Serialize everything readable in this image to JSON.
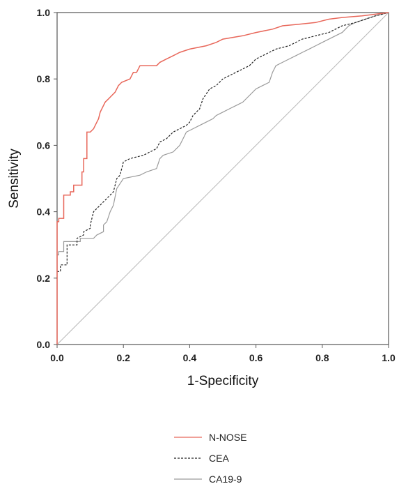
{
  "chart_data": {
    "type": "line",
    "xlabel": "1-Specificity",
    "ylabel": "Sensitivity",
    "xlim": [
      0,
      1
    ],
    "ylim": [
      0,
      1
    ],
    "x_ticks": [
      "0.0",
      "0.2",
      "0.4",
      "0.6",
      "0.8",
      "1.0"
    ],
    "y_ticks": [
      "0.0",
      "0.2",
      "0.4",
      "0.6",
      "0.8",
      "1.0"
    ],
    "legend_position": "bottom-center",
    "reference_line": {
      "from": [
        0,
        0
      ],
      "to": [
        1,
        1
      ],
      "color": "#b8b8b8"
    },
    "series": [
      {
        "name": "N-NOSE",
        "color": "#e8675a",
        "dash": "solid",
        "points": [
          [
            0,
            0
          ],
          [
            0,
            0.37
          ],
          [
            0.005,
            0.37
          ],
          [
            0.005,
            0.38
          ],
          [
            0.02,
            0.38
          ],
          [
            0.02,
            0.45
          ],
          [
            0.04,
            0.45
          ],
          [
            0.04,
            0.46
          ],
          [
            0.05,
            0.46
          ],
          [
            0.05,
            0.48
          ],
          [
            0.075,
            0.48
          ],
          [
            0.075,
            0.52
          ],
          [
            0.08,
            0.52
          ],
          [
            0.08,
            0.56
          ],
          [
            0.09,
            0.56
          ],
          [
            0.09,
            0.64
          ],
          [
            0.1,
            0.64
          ],
          [
            0.11,
            0.65
          ],
          [
            0.12,
            0.67
          ],
          [
            0.125,
            0.68
          ],
          [
            0.13,
            0.7
          ],
          [
            0.14,
            0.72
          ],
          [
            0.145,
            0.73
          ],
          [
            0.155,
            0.74
          ],
          [
            0.165,
            0.75
          ],
          [
            0.175,
            0.76
          ],
          [
            0.185,
            0.78
          ],
          [
            0.195,
            0.79
          ],
          [
            0.22,
            0.8
          ],
          [
            0.23,
            0.82
          ],
          [
            0.24,
            0.82
          ],
          [
            0.25,
            0.84
          ],
          [
            0.3,
            0.84
          ],
          [
            0.31,
            0.85
          ],
          [
            0.33,
            0.86
          ],
          [
            0.35,
            0.87
          ],
          [
            0.37,
            0.88
          ],
          [
            0.4,
            0.89
          ],
          [
            0.45,
            0.9
          ],
          [
            0.48,
            0.91
          ],
          [
            0.5,
            0.92
          ],
          [
            0.56,
            0.93
          ],
          [
            0.6,
            0.94
          ],
          [
            0.65,
            0.95
          ],
          [
            0.68,
            0.96
          ],
          [
            0.73,
            0.965
          ],
          [
            0.78,
            0.97
          ],
          [
            0.82,
            0.98
          ],
          [
            0.86,
            0.985
          ],
          [
            0.92,
            0.99
          ],
          [
            0.96,
            0.995
          ],
          [
            1,
            1
          ]
        ]
      },
      {
        "name": "CEA",
        "color": "#222222",
        "dash": "dashed",
        "points": [
          [
            0,
            0.22
          ],
          [
            0.01,
            0.22
          ],
          [
            0.01,
            0.24
          ],
          [
            0.03,
            0.24
          ],
          [
            0.03,
            0.3
          ],
          [
            0.06,
            0.3
          ],
          [
            0.06,
            0.32
          ],
          [
            0.08,
            0.33
          ],
          [
            0.08,
            0.34
          ],
          [
            0.1,
            0.35
          ],
          [
            0.1,
            0.36
          ],
          [
            0.11,
            0.4
          ],
          [
            0.13,
            0.42
          ],
          [
            0.15,
            0.44
          ],
          [
            0.17,
            0.46
          ],
          [
            0.18,
            0.5
          ],
          [
            0.19,
            0.51
          ],
          [
            0.2,
            0.55
          ],
          [
            0.22,
            0.56
          ],
          [
            0.26,
            0.57
          ],
          [
            0.28,
            0.58
          ],
          [
            0.3,
            0.59
          ],
          [
            0.31,
            0.61
          ],
          [
            0.33,
            0.62
          ],
          [
            0.35,
            0.64
          ],
          [
            0.37,
            0.65
          ],
          [
            0.39,
            0.66
          ],
          [
            0.4,
            0.67
          ],
          [
            0.41,
            0.69
          ],
          [
            0.43,
            0.71
          ],
          [
            0.44,
            0.74
          ],
          [
            0.46,
            0.77
          ],
          [
            0.48,
            0.78
          ],
          [
            0.5,
            0.8
          ],
          [
            0.52,
            0.81
          ],
          [
            0.54,
            0.82
          ],
          [
            0.56,
            0.83
          ],
          [
            0.58,
            0.84
          ],
          [
            0.6,
            0.86
          ],
          [
            0.62,
            0.87
          ],
          [
            0.66,
            0.89
          ],
          [
            0.7,
            0.9
          ],
          [
            0.74,
            0.92
          ],
          [
            0.78,
            0.93
          ],
          [
            0.82,
            0.94
          ],
          [
            0.86,
            0.96
          ],
          [
            0.9,
            0.97
          ],
          [
            0.93,
            0.98
          ],
          [
            0.96,
            0.99
          ],
          [
            1,
            1
          ]
        ]
      },
      {
        "name": "CA19-9",
        "color": "#9a9a9a",
        "dash": "solid",
        "points": [
          [
            0,
            0.27
          ],
          [
            0.005,
            0.27
          ],
          [
            0.005,
            0.28
          ],
          [
            0.02,
            0.28
          ],
          [
            0.02,
            0.31
          ],
          [
            0.07,
            0.31
          ],
          [
            0.07,
            0.32
          ],
          [
            0.11,
            0.32
          ],
          [
            0.12,
            0.33
          ],
          [
            0.14,
            0.34
          ],
          [
            0.14,
            0.36
          ],
          [
            0.15,
            0.37
          ],
          [
            0.16,
            0.4
          ],
          [
            0.17,
            0.42
          ],
          [
            0.18,
            0.47
          ],
          [
            0.2,
            0.5
          ],
          [
            0.25,
            0.51
          ],
          [
            0.27,
            0.52
          ],
          [
            0.3,
            0.53
          ],
          [
            0.31,
            0.56
          ],
          [
            0.32,
            0.57
          ],
          [
            0.35,
            0.58
          ],
          [
            0.37,
            0.6
          ],
          [
            0.38,
            0.62
          ],
          [
            0.39,
            0.64
          ],
          [
            0.41,
            0.65
          ],
          [
            0.43,
            0.66
          ],
          [
            0.45,
            0.67
          ],
          [
            0.47,
            0.68
          ],
          [
            0.48,
            0.69
          ],
          [
            0.5,
            0.7
          ],
          [
            0.52,
            0.71
          ],
          [
            0.54,
            0.72
          ],
          [
            0.56,
            0.73
          ],
          [
            0.58,
            0.75
          ],
          [
            0.6,
            0.77
          ],
          [
            0.62,
            0.78
          ],
          [
            0.64,
            0.79
          ],
          [
            0.65,
            0.82
          ],
          [
            0.66,
            0.84
          ],
          [
            0.68,
            0.85
          ],
          [
            0.7,
            0.86
          ],
          [
            0.72,
            0.87
          ],
          [
            0.74,
            0.88
          ],
          [
            0.76,
            0.89
          ],
          [
            0.78,
            0.9
          ],
          [
            0.8,
            0.91
          ],
          [
            0.82,
            0.92
          ],
          [
            0.84,
            0.93
          ],
          [
            0.86,
            0.94
          ],
          [
            0.88,
            0.96
          ],
          [
            0.9,
            0.97
          ],
          [
            0.93,
            0.98
          ],
          [
            0.96,
            0.99
          ],
          [
            1,
            1
          ]
        ]
      }
    ]
  }
}
